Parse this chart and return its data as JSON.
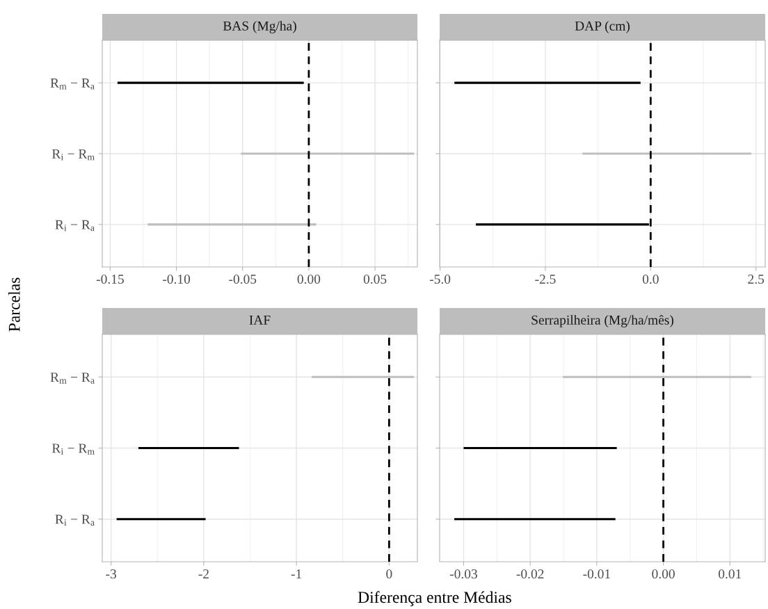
{
  "chart_data": [
    {
      "type": "bar",
      "orientation": "horizontal",
      "title": "BAS (Mg/ha)",
      "xlabel": "Diferença entre Médias",
      "ylabel": "Parcelas",
      "categories": [
        "R$_{m}$ − R$_{a}$",
        "R$_{i}$ − R$_{m}$",
        "R$_{i}$ − R$_{a}$"
      ],
      "base": [
        -0.1445,
        -0.0512,
        -0.1217
      ],
      "values": [
        0.1407,
        0.1307,
        0.1273
      ],
      "colors": [
        "#000000",
        "#bebebe",
        "#bebebe"
      ],
      "xlim": [
        -0.156,
        0.082
      ],
      "xticks": [
        {
          "value": -0.15,
          "label": "-0.15"
        },
        {
          "value": -0.1,
          "label": "-0.10"
        },
        {
          "value": -0.05,
          "label": "-0.05"
        },
        {
          "value": 0,
          "label": "0.00"
        },
        {
          "value": 0.05,
          "label": "0.05"
        }
      ],
      "ref_lines": [
        {
          "axis": "x",
          "value": 0,
          "color": "#000000",
          "line_style": "dashed"
        }
      ],
      "grid": true
    },
    {
      "type": "bar",
      "orientation": "horizontal",
      "title": "DAP (cm)",
      "categories": [
        null,
        null,
        null
      ],
      "base": [
        -4.66,
        -1.62,
        -4.15
      ],
      "values": [
        4.42,
        4.01,
        4.11
      ],
      "colors": [
        "#000000",
        "#bebebe",
        "#000000"
      ],
      "xlim": [
        -5.01,
        2.72
      ],
      "xticks": [
        {
          "value": -5,
          "label": "-5.0"
        },
        {
          "value": -2.5,
          "label": "-2.5"
        },
        {
          "value": 0,
          "label": "0.0"
        },
        {
          "value": 2.5,
          "label": "2.5"
        }
      ],
      "ref_lines": [
        {
          "axis": "x",
          "value": 0,
          "color": "#000000",
          "line_style": "dashed"
        }
      ],
      "grid": true,
      "tick_labels": "x"
    },
    {
      "type": "bar",
      "orientation": "horizontal",
      "title": "IAF",
      "categories": [
        "R$_{m}$ − R$_{a}$",
        "R$_{i}$ − R$_{m}$",
        "R$_{i}$ − R$_{a}$"
      ],
      "base": [
        -0.835,
        -2.705,
        -2.94
      ],
      "values": [
        1.103,
        1.085,
        0.96
      ],
      "colors": [
        "#bebebe",
        "#000000",
        "#000000"
      ],
      "xlim": [
        -3.095,
        0.305
      ],
      "xticks": [
        {
          "value": -3,
          "label": "-3"
        },
        {
          "value": -2,
          "label": "-2"
        },
        {
          "value": -1,
          "label": "-1"
        },
        0
      ],
      "ref_lines": [
        {
          "axis": "x",
          "value": 0,
          "color": "#000000",
          "line_style": "dashed"
        }
      ],
      "grid": true
    },
    {
      "type": "bar",
      "orientation": "horizontal",
      "title": "Serrapilheira (Mg/ha/mês)",
      "categories": [
        null,
        null,
        null
      ],
      "base": [
        -0.0151,
        -0.03,
        -0.0314
      ],
      "values": [
        0.0283,
        0.023,
        0.0242
      ],
      "colors": [
        "#bebebe",
        "#000000",
        "#000000"
      ],
      "xlim": [
        -0.0336,
        0.0153
      ],
      "xticks": [
        {
          "value": -0.03,
          "label": "-0.03"
        },
        {
          "value": -0.02,
          "label": "-0.02"
        },
        {
          "value": -0.01,
          "label": "-0.01"
        },
        {
          "value": 0,
          "label": "0.00"
        },
        {
          "value": 0.01,
          "label": "0.01"
        }
      ],
      "ref_lines": [
        {
          "axis": "x",
          "value": 0,
          "color": "#000000",
          "line_style": "dashed"
        }
      ],
      "grid": true,
      "tick_labels": "x"
    }
  ]
}
